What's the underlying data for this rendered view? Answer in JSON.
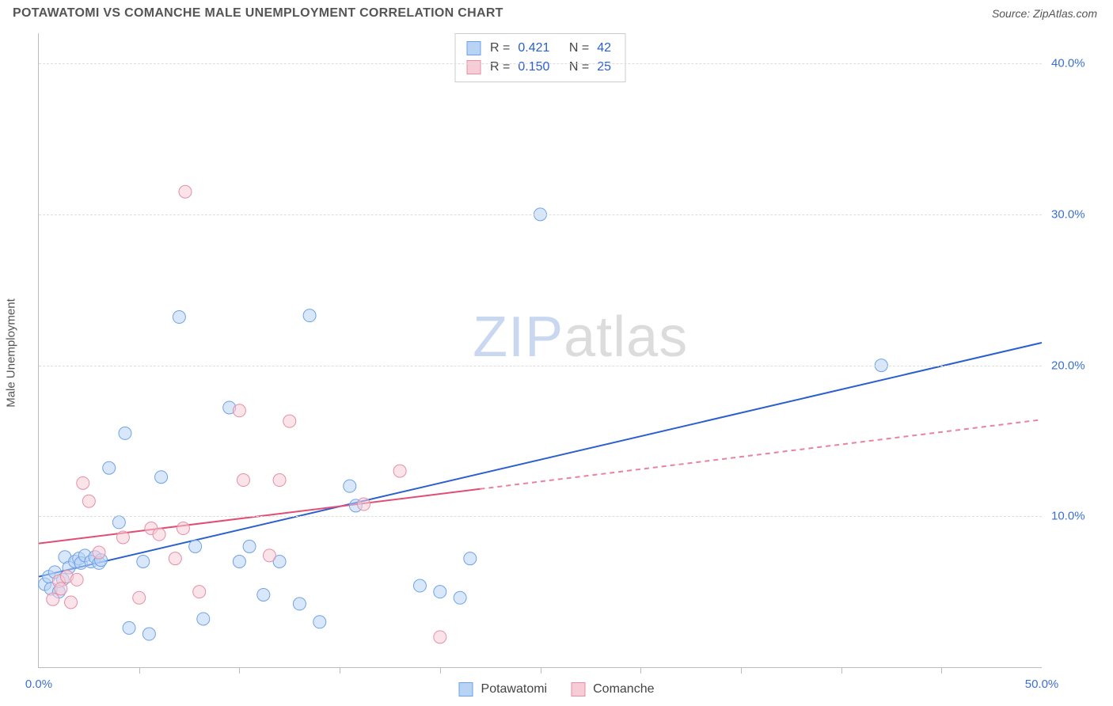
{
  "header": {
    "title": "POTAWATOMI VS COMANCHE MALE UNEMPLOYMENT CORRELATION CHART",
    "source_label": "Source:",
    "source_name": "ZipAtlas.com"
  },
  "chart": {
    "type": "scatter",
    "y_axis_label": "Male Unemployment",
    "xlim": [
      0,
      50
    ],
    "ylim": [
      0,
      42
    ],
    "x_ticks": [
      0,
      50
    ],
    "x_tick_labels": [
      "0.0%",
      "50.0%"
    ],
    "x_minor_ticks": [
      5,
      10,
      15,
      20,
      25,
      30,
      35,
      40,
      45
    ],
    "y_gridlines": [
      10,
      20,
      30,
      40
    ],
    "y_tick_labels": [
      "10.0%",
      "20.0%",
      "30.0%",
      "40.0%"
    ],
    "background_color": "#ffffff",
    "grid_color": "#dddddd",
    "axis_color": "#bbbbbb",
    "tick_label_color": "#3b6fd6",
    "label_fontsize": 15,
    "marker_radius": 8,
    "marker_opacity": 0.55,
    "series": [
      {
        "name": "Potawatomi",
        "color_fill": "#b9d3f5",
        "color_stroke": "#6ea2e8",
        "R": "0.421",
        "N": "42",
        "trend": {
          "x1": 0,
          "y1": 6.0,
          "x2": 50,
          "y2": 21.5,
          "solid_until_x": 50,
          "color": "#2a5fd0",
          "width": 2
        },
        "points": [
          [
            0.3,
            5.5
          ],
          [
            0.5,
            6.0
          ],
          [
            0.6,
            5.2
          ],
          [
            0.8,
            6.3
          ],
          [
            1.0,
            5.0
          ],
          [
            1.2,
            5.8
          ],
          [
            1.3,
            7.3
          ],
          [
            1.5,
            6.6
          ],
          [
            1.8,
            7.0
          ],
          [
            2.0,
            7.2
          ],
          [
            2.1,
            6.9
          ],
          [
            2.3,
            7.4
          ],
          [
            2.6,
            7.0
          ],
          [
            2.8,
            7.3
          ],
          [
            3.0,
            6.9
          ],
          [
            3.1,
            7.1
          ],
          [
            3.5,
            13.2
          ],
          [
            4.0,
            9.6
          ],
          [
            4.3,
            15.5
          ],
          [
            4.5,
            2.6
          ],
          [
            5.2,
            7.0
          ],
          [
            5.5,
            2.2
          ],
          [
            6.1,
            12.6
          ],
          [
            7.0,
            23.2
          ],
          [
            7.8,
            8.0
          ],
          [
            8.2,
            3.2
          ],
          [
            9.5,
            17.2
          ],
          [
            10.0,
            7.0
          ],
          [
            10.5,
            8.0
          ],
          [
            11.2,
            4.8
          ],
          [
            12.0,
            7.0
          ],
          [
            13.0,
            4.2
          ],
          [
            13.5,
            23.3
          ],
          [
            14.0,
            3.0
          ],
          [
            15.5,
            12.0
          ],
          [
            15.8,
            10.7
          ],
          [
            19.0,
            5.4
          ],
          [
            20.0,
            5.0
          ],
          [
            21.0,
            4.6
          ],
          [
            21.5,
            7.2
          ],
          [
            25.0,
            30.0
          ],
          [
            42.0,
            20.0
          ]
        ]
      },
      {
        "name": "Comanche",
        "color_fill": "#f6ccd7",
        "color_stroke": "#e58fa6",
        "R": "0.150",
        "N": "25",
        "trend": {
          "x1": 0,
          "y1": 8.2,
          "x2": 50,
          "y2": 16.4,
          "solid_until_x": 22,
          "color": "#e14e74",
          "width": 2
        },
        "points": [
          [
            0.7,
            4.5
          ],
          [
            1.0,
            5.7
          ],
          [
            1.1,
            5.2
          ],
          [
            1.4,
            6.0
          ],
          [
            1.6,
            4.3
          ],
          [
            1.9,
            5.8
          ],
          [
            2.2,
            12.2
          ],
          [
            2.5,
            11.0
          ],
          [
            3.0,
            7.6
          ],
          [
            4.2,
            8.6
          ],
          [
            5.0,
            4.6
          ],
          [
            5.6,
            9.2
          ],
          [
            6.0,
            8.8
          ],
          [
            6.8,
            7.2
          ],
          [
            7.2,
            9.2
          ],
          [
            7.3,
            31.5
          ],
          [
            8.0,
            5.0
          ],
          [
            10.0,
            17.0
          ],
          [
            10.2,
            12.4
          ],
          [
            11.5,
            7.4
          ],
          [
            12.0,
            12.4
          ],
          [
            12.5,
            16.3
          ],
          [
            16.2,
            10.8
          ],
          [
            18.0,
            13.0
          ],
          [
            20.0,
            2.0
          ]
        ]
      }
    ],
    "stats_box": {
      "r_label": "R =",
      "n_label": "N ="
    },
    "legend": {
      "items": [
        "Potawatomi",
        "Comanche"
      ]
    },
    "watermark": {
      "part1": "ZIP",
      "part2": "atlas"
    }
  }
}
